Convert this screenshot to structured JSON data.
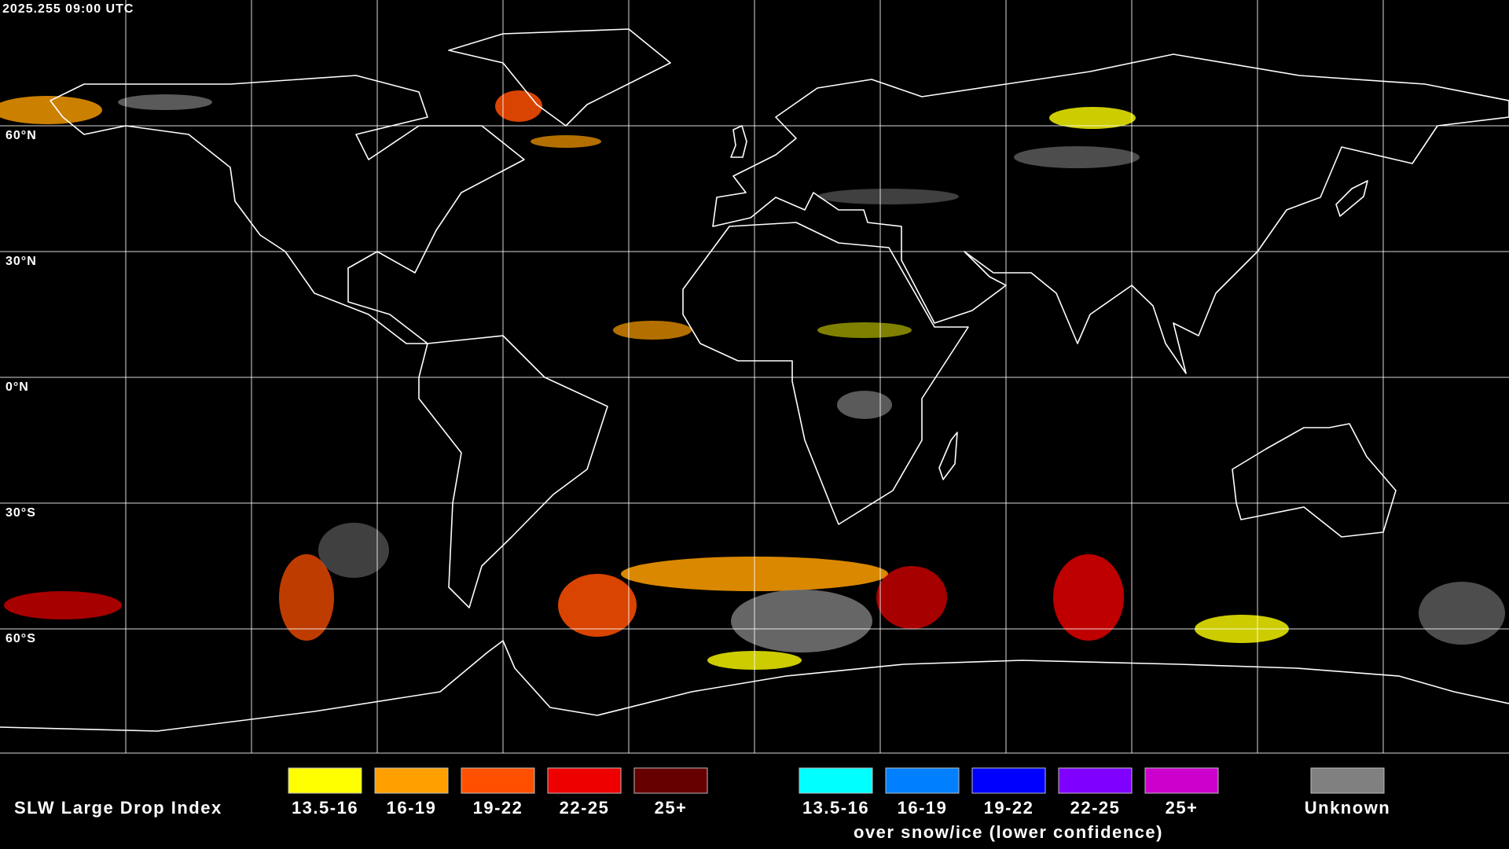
{
  "timestamp": "2025.255 09:00 UTC",
  "lat_labels": [
    "60°N",
    "30°N",
    "0°N",
    "30°S",
    "60°S"
  ],
  "legend": {
    "title": "SLW Large Drop Index",
    "bins": [
      {
        "label": "13.5-16",
        "color": "#ffff00"
      },
      {
        "label": "16-19",
        "color": "#ffa000"
      },
      {
        "label": "19-22",
        "color": "#ff5000"
      },
      {
        "label": "22-25",
        "color": "#ee0000"
      },
      {
        "label": "25+",
        "color": "#660000"
      }
    ],
    "snow_bins": [
      {
        "label": "13.5-16",
        "color": "#00ffff"
      },
      {
        "label": "16-19",
        "color": "#0080ff"
      },
      {
        "label": "19-22",
        "color": "#0000ff"
      },
      {
        "label": "22-25",
        "color": "#8000ff"
      },
      {
        "label": "25+",
        "color": "#cc00cc"
      }
    ],
    "snow_caption": "over snow/ice (lower confidence)",
    "unknown": {
      "label": "Unknown",
      "color": "#808080"
    }
  }
}
